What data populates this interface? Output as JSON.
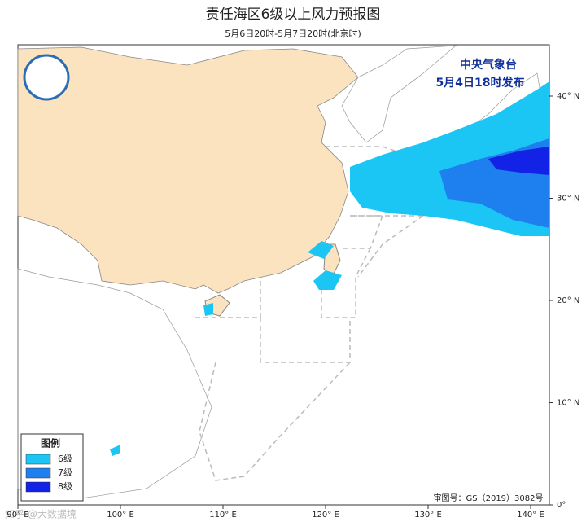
{
  "header": {
    "title": "责任海区6级以上风力预报图",
    "subtitle": "5月6日20时-5月7日20时(北京时)"
  },
  "publisher": {
    "name": "中央气象台",
    "issued": "5月4日18时发布"
  },
  "legend": {
    "title": "图例",
    "items": [
      {
        "label": "6级",
        "color": "#1cc6f4"
      },
      {
        "label": "7级",
        "color": "#1e80ee"
      },
      {
        "label": "8级",
        "color": "#1222e6"
      }
    ]
  },
  "axes": {
    "lon_labels": [
      "90° E",
      "100° E",
      "110° E",
      "120° E",
      "130° E",
      "140° E"
    ],
    "lat_labels": [
      "40° N",
      "30° N",
      "20° N",
      "10° N",
      "0°"
    ]
  },
  "review": "审图号：GS（2019）3082号",
  "watermark": "知乎 @大数据境"
}
